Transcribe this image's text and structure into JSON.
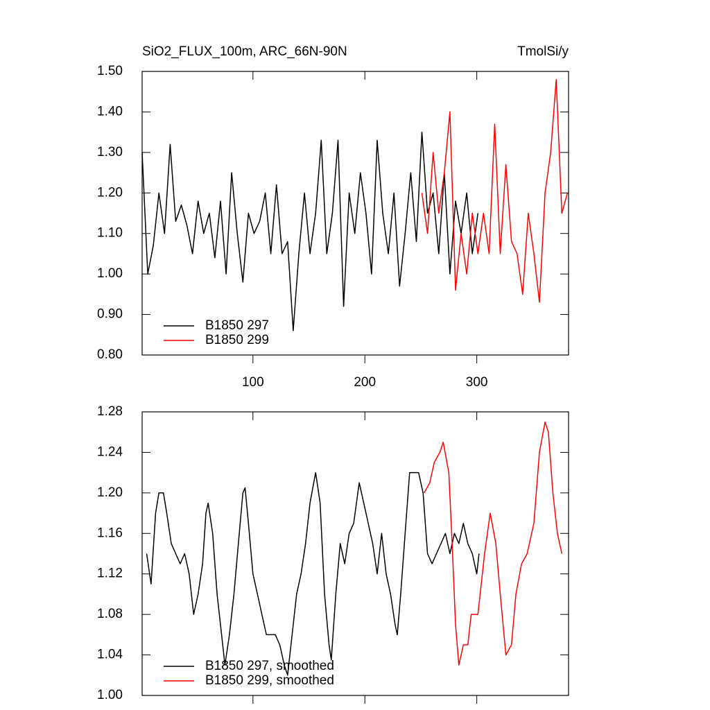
{
  "chart_data": [
    {
      "type": "line",
      "title": "SiO2_FLUX_100m, ARC_66N-90N",
      "subtitle": "TmolSi/y",
      "xlim": [
        1,
        382
      ],
      "ylim": [
        0.8,
        1.5
      ],
      "xticks": [
        100,
        200,
        300
      ],
      "show_xtick_labels": true,
      "yticks": [
        {
          "value": 0.8,
          "label": "0.80"
        },
        {
          "value": 0.9,
          "label": "0.90"
        },
        {
          "value": 1.0,
          "label": "1.00"
        },
        {
          "value": 1.1,
          "label": "1.10"
        },
        {
          "value": 1.2,
          "label": "1.20"
        },
        {
          "value": 1.3,
          "label": "1.30"
        },
        {
          "value": 1.4,
          "label": "1.40"
        },
        {
          "value": 1.5,
          "label": "1.50"
        }
      ],
      "legend": "bottom-left",
      "series": [
        {
          "name": "B1850 297",
          "color": "#000000",
          "x": [
            1,
            6,
            11,
            16,
            21,
            26,
            31,
            36,
            41,
            46,
            51,
            56,
            61,
            66,
            71,
            76,
            81,
            86,
            91,
            96,
            101,
            106,
            111,
            116,
            121,
            126,
            131,
            136,
            141,
            146,
            151,
            156,
            161,
            166,
            171,
            176,
            181,
            186,
            191,
            196,
            201,
            206,
            211,
            216,
            221,
            226,
            231,
            236,
            241,
            246,
            251,
            256,
            261,
            266,
            271,
            276,
            281,
            286,
            291,
            296,
            301
          ],
          "values": [
            1.3,
            1.0,
            1.07,
            1.2,
            1.1,
            1.32,
            1.13,
            1.17,
            1.12,
            1.05,
            1.18,
            1.1,
            1.15,
            1.04,
            1.18,
            1.0,
            1.25,
            1.1,
            0.98,
            1.15,
            1.1,
            1.13,
            1.2,
            1.05,
            1.22,
            1.05,
            1.08,
            0.86,
            1.05,
            1.2,
            1.05,
            1.15,
            1.33,
            1.05,
            1.15,
            1.33,
            0.92,
            1.2,
            1.1,
            1.25,
            1.15,
            1.0,
            1.33,
            1.15,
            1.05,
            1.2,
            0.97,
            1.1,
            1.25,
            1.08,
            1.35,
            1.15,
            1.2,
            1.05,
            1.25,
            1.0,
            1.18,
            1.1,
            1.2,
            1.05,
            1.15
          ]
        },
        {
          "name": "B1850 299",
          "color": "#ff0000",
          "x": [
            251,
            256,
            261,
            266,
            271,
            276,
            281,
            286,
            291,
            296,
            301,
            306,
            311,
            316,
            321,
            326,
            331,
            336,
            341,
            346,
            351,
            356,
            361,
            366,
            371,
            376,
            381
          ],
          "values": [
            1.2,
            1.1,
            1.3,
            1.15,
            1.25,
            1.4,
            0.96,
            1.1,
            1.0,
            1.15,
            1.05,
            1.15,
            1.05,
            1.37,
            1.05,
            1.27,
            1.08,
            1.05,
            0.95,
            1.15,
            1.05,
            0.93,
            1.2,
            1.3,
            1.48,
            1.15,
            1.2
          ]
        }
      ]
    },
    {
      "type": "line",
      "xlim": [
        1,
        382
      ],
      "ylim": [
        1.0,
        1.28
      ],
      "xticks": [
        100,
        200,
        300
      ],
      "show_xtick_labels": false,
      "yticks": [
        {
          "value": 1.0,
          "label": "1.00"
        },
        1.04,
        1.08,
        1.12,
        1.16,
        {
          "value": 1.2,
          "label": "1.20"
        },
        1.24,
        1.28
      ],
      "legend": "bottom-left",
      "series": [
        {
          "name": "B1850 297, smoothed",
          "color": "#000000",
          "x": [
            5,
            9,
            13,
            16,
            20,
            23,
            27,
            31,
            35,
            39,
            43,
            47,
            51,
            55,
            58,
            60,
            64,
            68,
            72,
            75,
            79,
            83,
            87,
            91,
            93,
            96,
            100,
            104,
            108,
            112,
            116,
            120,
            124,
            128,
            131,
            135,
            139,
            143,
            147,
            151,
            156,
            160,
            164,
            168,
            170,
            174,
            178,
            182,
            186,
            190,
            195,
            199,
            203,
            207,
            211,
            215,
            219,
            223,
            227,
            229,
            232,
            236,
            240,
            244,
            248,
            252,
            256,
            260,
            264,
            268,
            272,
            276,
            280,
            284,
            288,
            292,
            296,
            300,
            302
          ],
          "values": [
            1.14,
            1.11,
            1.18,
            1.2,
            1.2,
            1.18,
            1.15,
            1.14,
            1.13,
            1.14,
            1.12,
            1.08,
            1.1,
            1.13,
            1.18,
            1.19,
            1.16,
            1.1,
            1.06,
            1.03,
            1.06,
            1.1,
            1.15,
            1.2,
            1.205,
            1.17,
            1.12,
            1.1,
            1.08,
            1.06,
            1.06,
            1.06,
            1.05,
            1.03,
            1.02,
            1.06,
            1.1,
            1.12,
            1.15,
            1.19,
            1.22,
            1.19,
            1.1,
            1.05,
            1.035,
            1.1,
            1.15,
            1.13,
            1.16,
            1.17,
            1.21,
            1.19,
            1.17,
            1.15,
            1.12,
            1.16,
            1.12,
            1.1,
            1.07,
            1.06,
            1.1,
            1.16,
            1.22,
            1.22,
            1.22,
            1.2,
            1.14,
            1.13,
            1.14,
            1.15,
            1.16,
            1.14,
            1.16,
            1.15,
            1.17,
            1.15,
            1.14,
            1.12,
            1.14
          ]
        },
        {
          "name": "B1850 299, smoothed",
          "color": "#ff0000",
          "x": [
            253,
            258,
            262,
            267,
            270,
            275,
            278,
            281,
            284,
            288,
            292,
            295,
            301,
            307,
            312,
            317,
            321,
            326,
            331,
            335,
            340,
            345,
            351,
            356,
            361,
            364,
            368,
            372,
            376
          ],
          "values": [
            1.2,
            1.21,
            1.23,
            1.24,
            1.25,
            1.22,
            1.15,
            1.07,
            1.03,
            1.05,
            1.05,
            1.08,
            1.08,
            1.14,
            1.18,
            1.15,
            1.1,
            1.04,
            1.05,
            1.1,
            1.13,
            1.14,
            1.17,
            1.24,
            1.27,
            1.26,
            1.2,
            1.16,
            1.14
          ]
        }
      ]
    }
  ]
}
